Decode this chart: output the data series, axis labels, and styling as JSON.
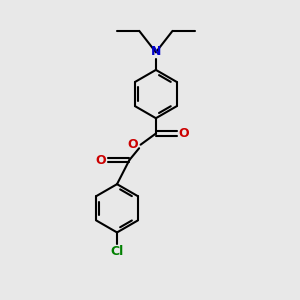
{
  "bg_color": "#e8e8e8",
  "bond_color": "#000000",
  "N_color": "#0000cc",
  "O_color": "#cc0000",
  "Cl_color": "#008000",
  "bond_width": 1.5,
  "figsize": [
    3.0,
    3.0
  ],
  "dpi": 100,
  "xlim": [
    0,
    10
  ],
  "ylim": [
    0,
    10
  ]
}
